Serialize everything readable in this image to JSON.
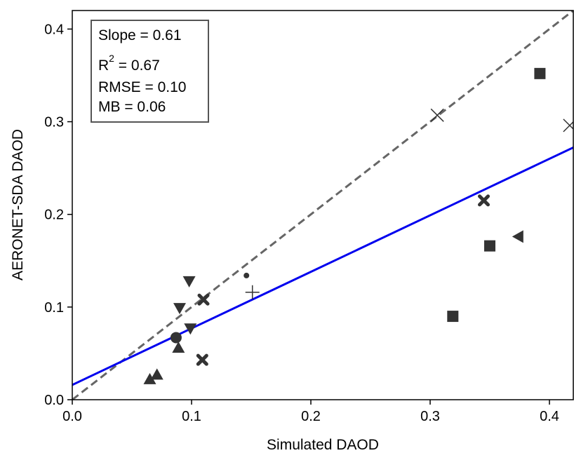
{
  "chart_data": {
    "type": "scatter",
    "title": "",
    "xlabel": "Simulated DAOD",
    "ylabel": "AERONET-SDA DAOD",
    "xlim": [
      0.0,
      0.42
    ],
    "ylim": [
      0.0,
      0.42
    ],
    "xticks": [
      "0.0",
      "0.1",
      "0.2",
      "0.3",
      "0.4"
    ],
    "yticks": [
      "0.0",
      "0.1",
      "0.2",
      "0.3",
      "0.4"
    ],
    "grid": false,
    "stats": {
      "slope": "Slope = 0.61",
      "r2_prefix": "R",
      "r2_sup": "2",
      "r2_value": " = 0.67",
      "rmse": "RMSE = 0.10",
      "mb": "MB = 0.06",
      "placement": "top-left"
    },
    "one_to_one_line": {
      "x": [
        0.0,
        0.42
      ],
      "y": [
        0.0,
        0.42
      ],
      "color": "#666666",
      "style": "dashed"
    },
    "regression_line": {
      "slope": 0.61,
      "intercept": 0.016,
      "color": "#0000ee",
      "style": "solid"
    },
    "points": [
      {
        "x": 0.065,
        "y": 0.022,
        "marker": "triangle-up"
      },
      {
        "x": 0.071,
        "y": 0.027,
        "marker": "triangle-up"
      },
      {
        "x": 0.089,
        "y": 0.056,
        "marker": "triangle-up"
      },
      {
        "x": 0.087,
        "y": 0.067,
        "marker": "circle"
      },
      {
        "x": 0.099,
        "y": 0.077,
        "marker": "triangle-down"
      },
      {
        "x": 0.09,
        "y": 0.099,
        "marker": "triangle-down"
      },
      {
        "x": 0.098,
        "y": 0.128,
        "marker": "triangle-down"
      },
      {
        "x": 0.109,
        "y": 0.043,
        "marker": "x-thick"
      },
      {
        "x": 0.11,
        "y": 0.108,
        "marker": "x-thick"
      },
      {
        "x": 0.146,
        "y": 0.134,
        "marker": "dot"
      },
      {
        "x": 0.151,
        "y": 0.116,
        "marker": "plus"
      },
      {
        "x": 0.306,
        "y": 0.307,
        "marker": "x-thin"
      },
      {
        "x": 0.319,
        "y": 0.09,
        "marker": "square"
      },
      {
        "x": 0.345,
        "y": 0.215,
        "marker": "x-thick"
      },
      {
        "x": 0.35,
        "y": 0.166,
        "marker": "square"
      },
      {
        "x": 0.374,
        "y": 0.176,
        "marker": "triangle-left"
      },
      {
        "x": 0.392,
        "y": 0.352,
        "marker": "square"
      },
      {
        "x": 0.417,
        "y": 0.296,
        "marker": "x-thin"
      }
    ],
    "marker_color": "#333333"
  }
}
